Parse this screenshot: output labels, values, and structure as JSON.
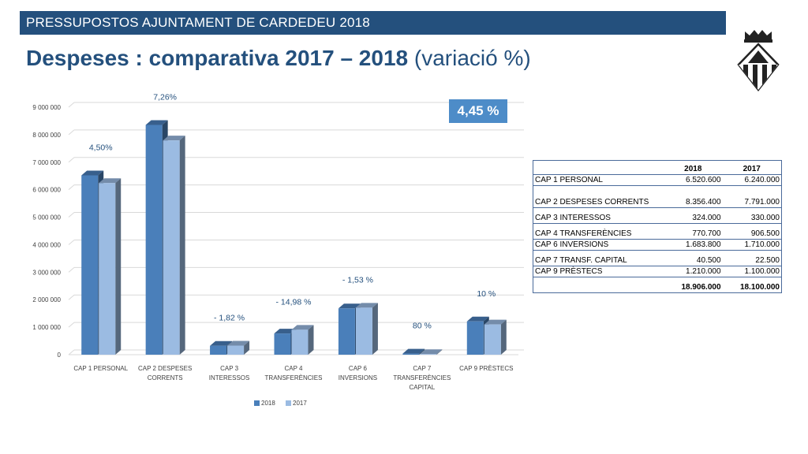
{
  "header": {
    "bar_text": "PRESSUPOSTOS AJUNTAMENT DE CARDEDEU 2018",
    "title_bold": "Despeses : comparativa 2017 – 2018",
    "title_light": " (variació %)"
  },
  "logo": {
    "icon": "coat-of-arms-icon"
  },
  "badge": {
    "text": "4,45 %"
  },
  "colors": {
    "s2018": "#4a7fba",
    "s2017": "#9bbbe2",
    "header": "#24507d",
    "labels": "#24507d"
  },
  "chart_data": {
    "type": "bar",
    "categories": [
      [
        "CAP 1 PERSONAL"
      ],
      [
        "CAP 2 DESPESES",
        "CORRENTS"
      ],
      [
        "CAP 3",
        "INTERESSOS"
      ],
      [
        "CAP 4",
        "TRANSFERÈNCIES"
      ],
      [
        "CAP 6",
        "INVERSIONS"
      ],
      [
        "CAP 7",
        "TRANSFERÈNCIES",
        "CAPITAL"
      ],
      [
        "CAP 9 PRÈSTECS"
      ]
    ],
    "series": [
      {
        "name": "2018",
        "values": [
          6520600,
          8356400,
          324000,
          770700,
          1683800,
          40500,
          1210000
        ]
      },
      {
        "name": "2017",
        "values": [
          6240000,
          7791000,
          330000,
          906500,
          1710000,
          22500,
          1100000
        ]
      }
    ],
    "annotations": [
      "4,50%",
      "7,26%",
      "- 1,82 %",
      "- 14,98 %",
      "- 1,53 %",
      "80 %",
      "10 %"
    ],
    "yticks": [
      "0",
      "1 000 000",
      "2 000 000",
      "3 000 000",
      "4 000 000",
      "5 000 000",
      "6 000 000",
      "7 000 000",
      "8 000 000",
      "9 000 000"
    ],
    "ylim": [
      0,
      9000000
    ],
    "grid": true,
    "legend": "bottom"
  },
  "table": {
    "headers": [
      "",
      "2018",
      "2017"
    ],
    "rows": [
      [
        "CAP 1 PERSONAL",
        "6.520.600",
        "6.240.000"
      ],
      [
        "CAP 2 DESPESES CORRENTS",
        "8.356.400",
        "7.791.000"
      ],
      [
        "CAP 3 INTERESSOS",
        "324.000",
        "330.000"
      ],
      [
        "CAP 4 TRANSFERÈNCIES",
        "770.700",
        "906.500"
      ],
      [
        "CAP 6 INVERSIONS",
        "1.683.800",
        "1.710.000"
      ],
      [
        "CAP 7 TRANSF.  CAPITAL",
        "40.500",
        "22.500"
      ],
      [
        "CAP 9 PRÈSTECS",
        "1.210.000",
        "1.100.000"
      ]
    ],
    "total": [
      "",
      "18.906.000",
      "18.100.000"
    ]
  }
}
